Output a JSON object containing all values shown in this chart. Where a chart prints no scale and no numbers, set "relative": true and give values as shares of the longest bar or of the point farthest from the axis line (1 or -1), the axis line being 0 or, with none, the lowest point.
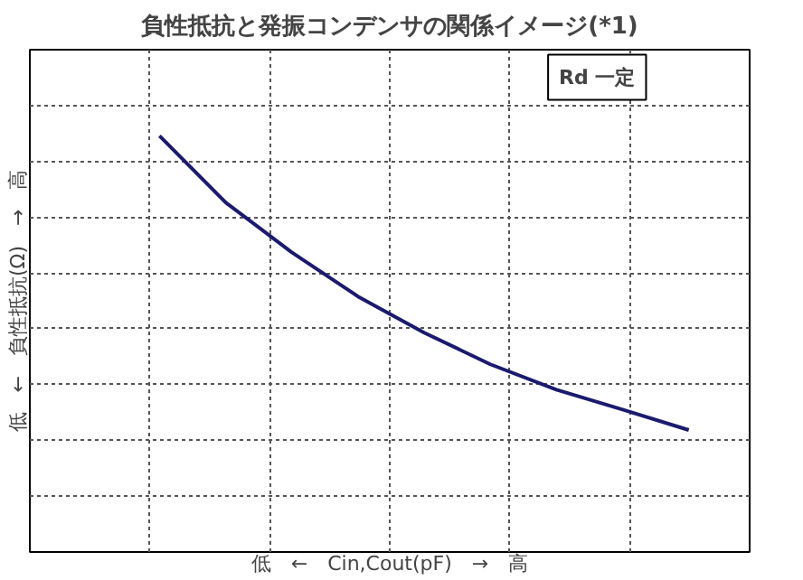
{
  "chart_data": {
    "type": "line",
    "title": "負性抵抗と発振コンデンサの関係イメージ(*1)",
    "xlabel": "低　←　Cin,Cout(pF)　→　高",
    "ylabel": "低　←　負性抵抗(Ω)　→　高",
    "relative": true,
    "categories": [
      null,
      null,
      null,
      null,
      null,
      null,
      null,
      null,
      null
    ],
    "series": [
      {
        "color": "#1a1a6e",
        "values": [
          1,
          0.84,
          0.72,
          0.614,
          0.527,
          0.451,
          0.39,
          0.342,
          0.293
        ]
      }
    ],
    "annotations": [
      "Rd 一定"
    ],
    "grid": true,
    "line_style": "solid",
    "marker": "none"
  }
}
